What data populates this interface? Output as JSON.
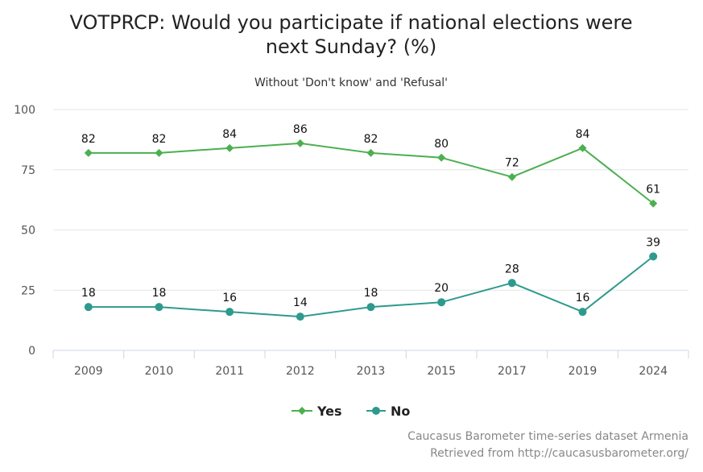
{
  "chart_data": {
    "type": "line",
    "title_line1": "VOTPRCP: Would you participate if national elections were",
    "title_line2": "next Sunday? (%)",
    "subtitle": "Without 'Don't know' and 'Refusal'",
    "categories": [
      "2009",
      "2010",
      "2011",
      "2012",
      "2013",
      "2015",
      "2017",
      "2019",
      "2024"
    ],
    "ylim": [
      0,
      100
    ],
    "yticks": [
      0,
      25,
      50,
      75,
      100
    ],
    "grid": true,
    "legend_position": "bottom-center",
    "series": [
      {
        "name": "Yes",
        "color": "#4caf50",
        "marker": "diamond",
        "values": [
          82,
          82,
          84,
          86,
          82,
          80,
          72,
          84,
          61
        ]
      },
      {
        "name": "No",
        "color": "#2e9a8e",
        "marker": "circle",
        "values": [
          18,
          18,
          16,
          14,
          18,
          20,
          28,
          16,
          39
        ]
      }
    ],
    "credits": [
      "Caucasus Barometer time-series dataset Armenia",
      "Retrieved from http://caucasusbarometer.org/"
    ]
  }
}
